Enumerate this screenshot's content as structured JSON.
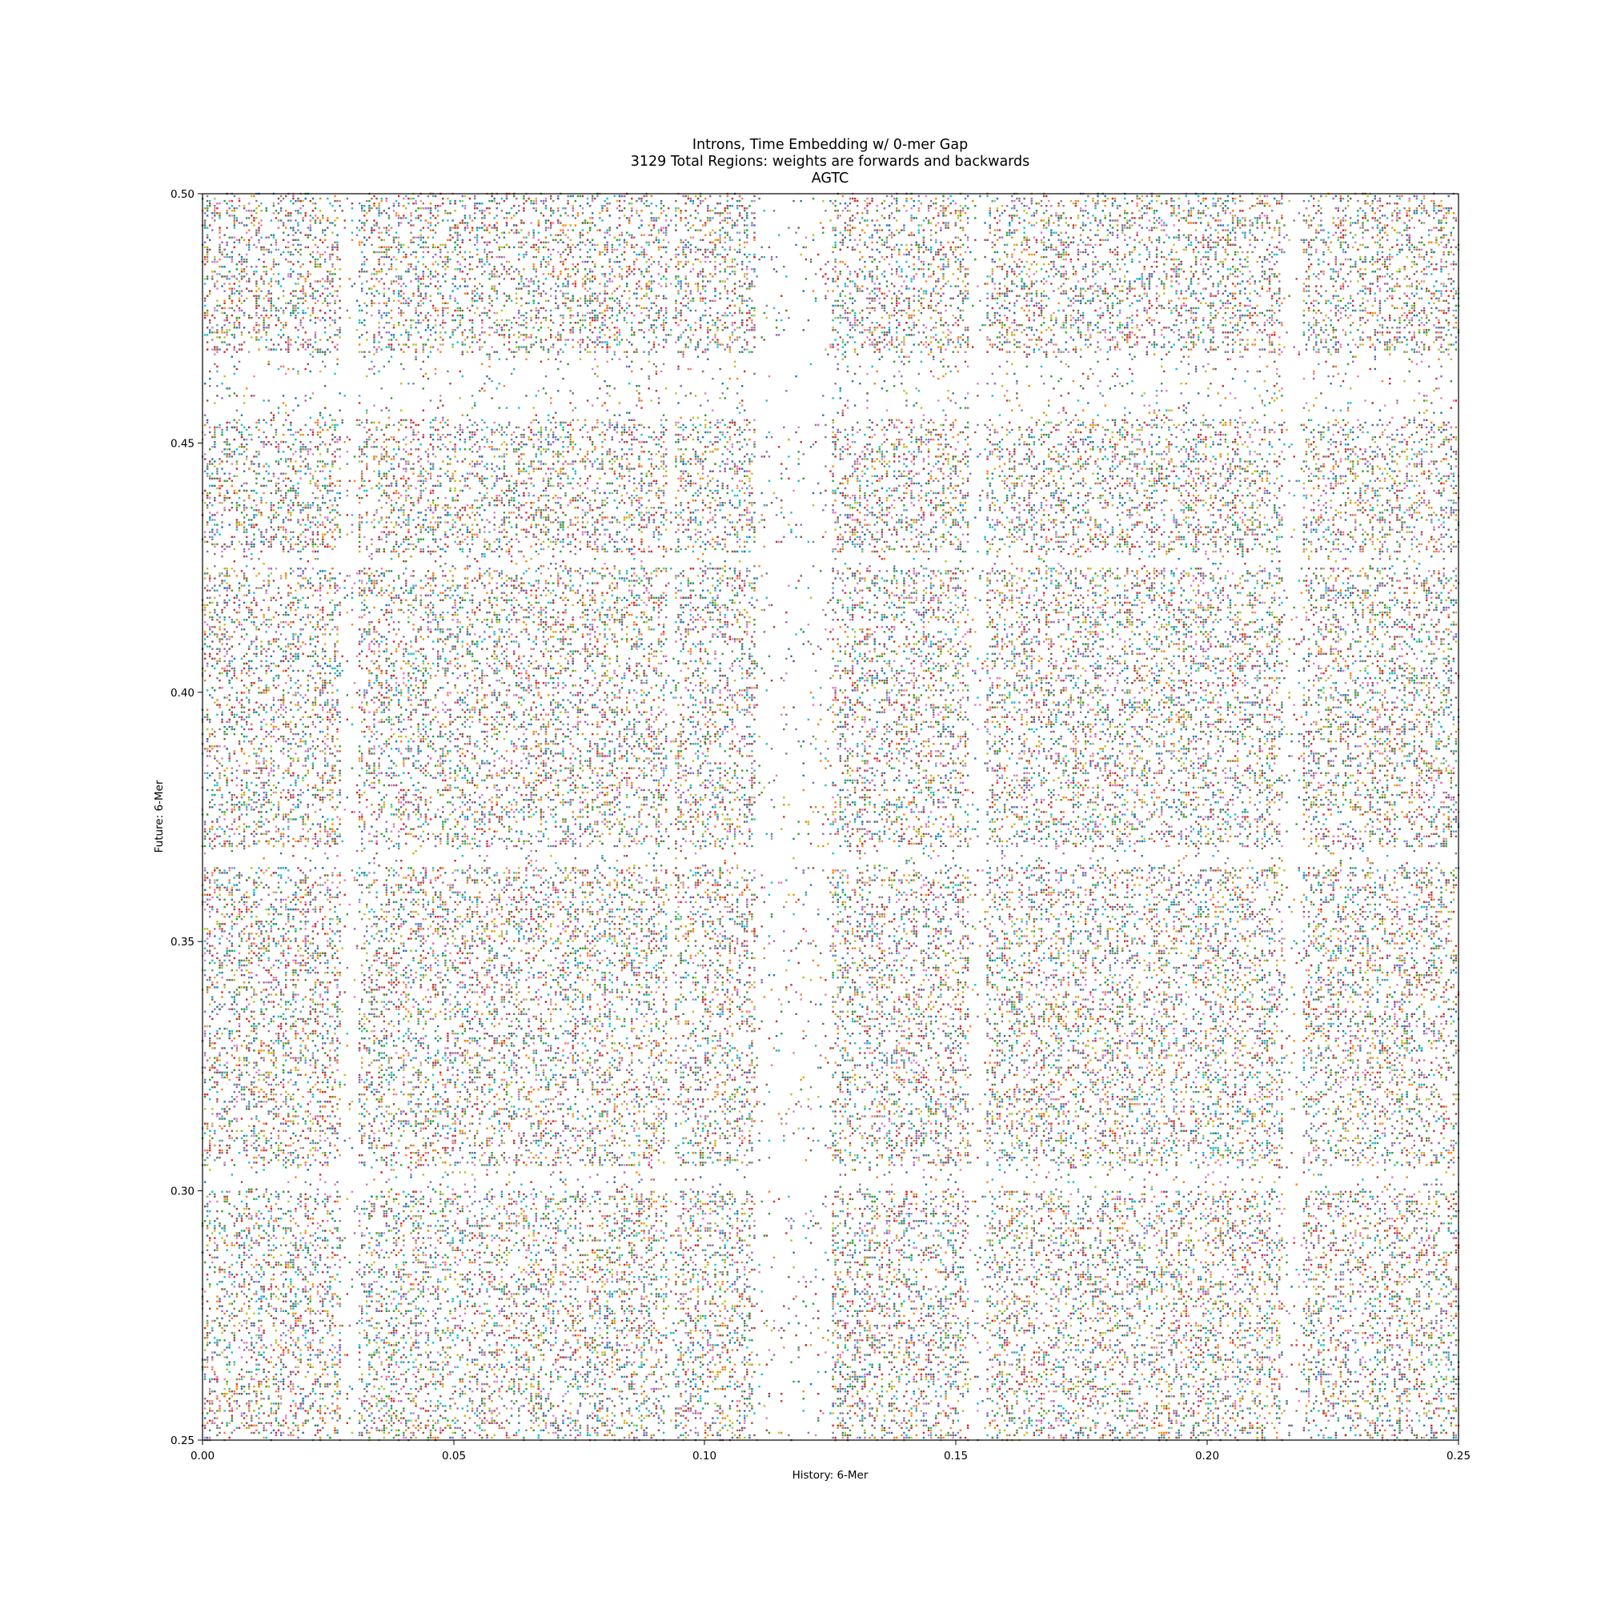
{
  "chart_data": {
    "type": "scatter",
    "title_lines": [
      "Introns, Time Embedding w/ 0-mer Gap",
      "3129 Total Regions: weights are forwards and backwards",
      "AGTC"
    ],
    "xlabel": "History: 6-Mer",
    "ylabel": "Future: 6-Mer",
    "xlim": [
      0.0,
      0.25
    ],
    "ylim": [
      0.25,
      0.5
    ],
    "xticks": [
      "0.00",
      "0.05",
      "0.10",
      "0.15",
      "0.20",
      "0.25"
    ],
    "yticks": [
      "0.25",
      "0.30",
      "0.35",
      "0.40",
      "0.45",
      "0.50"
    ],
    "grid": false,
    "legend": "none",
    "marker": "point",
    "approx_point_count": 60000,
    "series_colors": [
      "#1f77b4",
      "#ff7f0e",
      "#2ca02c",
      "#d62728",
      "#9467bd",
      "#8c564b",
      "#e377c2",
      "#7f7f7f",
      "#bcbd22",
      "#17becf"
    ],
    "sparse_bands_x": [
      [
        0.0275,
        0.031
      ],
      [
        0.0925,
        0.094
      ],
      [
        0.11,
        0.125
      ],
      [
        0.1525,
        0.156
      ],
      [
        0.215,
        0.219
      ]
    ],
    "sparse_bands_y": [
      [
        0.455,
        0.468
      ],
      [
        0.425,
        0.428
      ],
      [
        0.365,
        0.369
      ],
      [
        0.3,
        0.305
      ]
    ],
    "dense_sample_points": [
      {
        "x": 0.005,
        "y": 0.44
      },
      {
        "x": 0.02,
        "y": 0.41
      },
      {
        "x": 0.04,
        "y": 0.33
      },
      {
        "x": 0.065,
        "y": 0.27
      },
      {
        "x": 0.08,
        "y": 0.44
      },
      {
        "x": 0.1,
        "y": 0.39
      },
      {
        "x": 0.135,
        "y": 0.32
      },
      {
        "x": 0.165,
        "y": 0.41
      },
      {
        "x": 0.19,
        "y": 0.28
      },
      {
        "x": 0.205,
        "y": 0.44
      },
      {
        "x": 0.235,
        "y": 0.38
      },
      {
        "x": 0.245,
        "y": 0.48
      }
    ]
  }
}
